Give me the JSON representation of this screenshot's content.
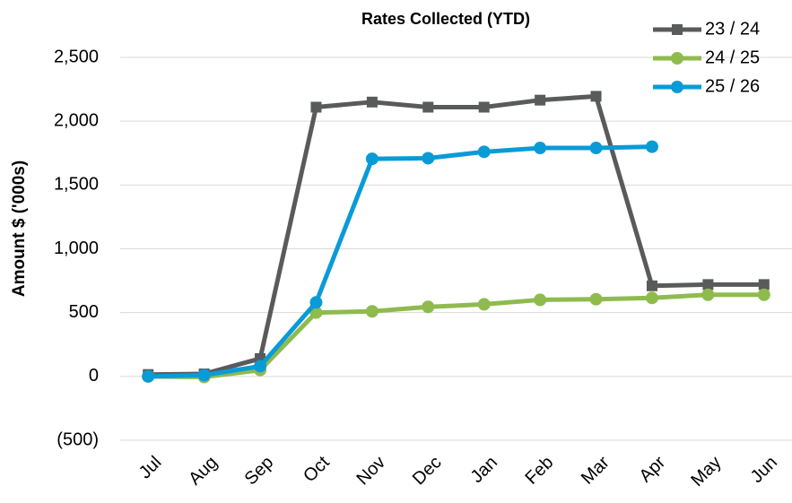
{
  "chart_data": {
    "type": "line",
    "title": "Rates Collected (YTD)",
    "y_label": "Amount $ ('000s)",
    "categories": [
      "Jul",
      "Aug",
      "Sep",
      "Oct",
      "Nov",
      "Dec",
      "Jan",
      "Feb",
      "Mar",
      "Apr",
      "May",
      "Jun"
    ],
    "series": [
      {
        "name": "23 / 24",
        "color": "#595a5c",
        "marker": "square",
        "values": [
          15,
          20,
          140,
          2110,
          2150,
          2110,
          2110,
          2165,
          2195,
          710,
          720,
          720
        ]
      },
      {
        "name": "24 / 25",
        "color": "#8fbb4e",
        "marker": "circle",
        "values": [
          0,
          -5,
          50,
          500,
          510,
          545,
          565,
          600,
          605,
          615,
          640,
          640
        ]
      },
      {
        "name": "25 / 26",
        "color": "#0a9bd7",
        "marker": "circle",
        "values": [
          0,
          10,
          80,
          580,
          1705,
          1710,
          1760,
          1790,
          1790,
          1800,
          null,
          null
        ]
      }
    ],
    "ylim": [
      -500,
      2500
    ],
    "yticks": [
      {
        "value": -500,
        "label": "(500)"
      },
      0,
      500,
      {
        "value": 1000,
        "label": "1,000"
      },
      {
        "value": 1500,
        "label": "1,500"
      },
      {
        "value": 2000,
        "label": "2,000"
      },
      {
        "value": 2500,
        "label": "2,500"
      }
    ],
    "grid": true,
    "legend": "top-right"
  }
}
